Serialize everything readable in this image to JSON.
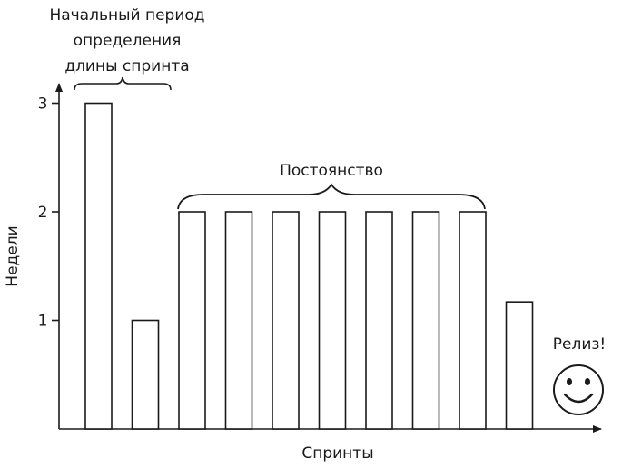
{
  "chart_data": {
    "type": "bar",
    "categories": [
      "",
      "",
      "",
      "",
      "",
      "",
      "",
      "",
      "",
      ""
    ],
    "values": [
      3,
      1,
      2,
      2,
      2,
      2,
      2,
      2,
      2,
      1.17
    ],
    "xlabel": "Спринты",
    "ylabel": "Недели",
    "yticks": [
      "1",
      "2",
      "3"
    ],
    "ylim": [
      0,
      3.85
    ],
    "grid": false,
    "legend": "none",
    "colors": {
      "ink": "#1a1a1a",
      "bar_fill": "#ffffff"
    },
    "annotations": {
      "initial_period": [
        "Начальный период",
        "определения",
        "длины спринта"
      ],
      "stability": "Постоянство",
      "release": "Релиз!"
    },
    "release_icon": "smiley-face-icon"
  }
}
